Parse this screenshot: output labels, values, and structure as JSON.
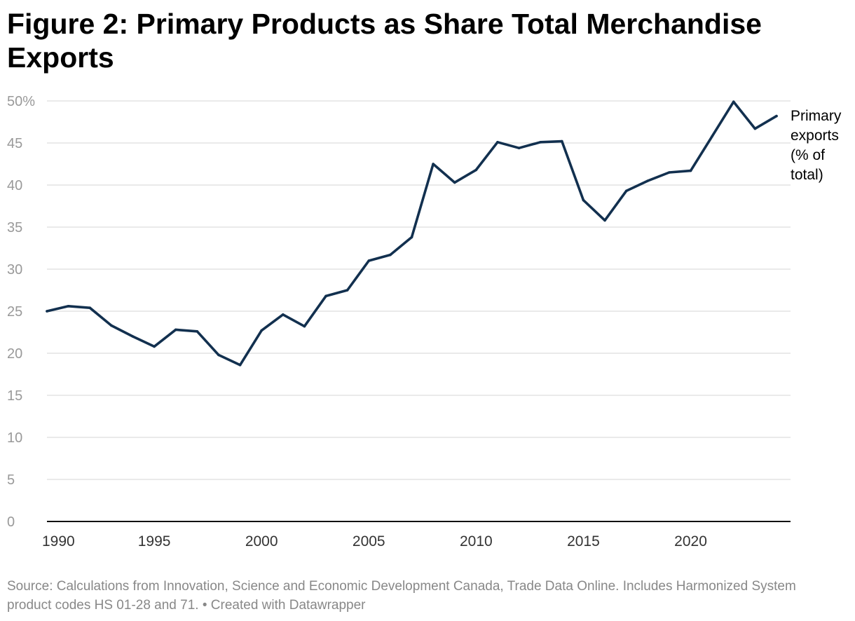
{
  "title": "Figure 2: Primary Products as Share Total Merchandise Exports",
  "footer": {
    "source": "Source: Calculations from Innovation, Science and Economic Development Canada, Trade Data Online. Includes Harmonized System product codes HS 01-28 and 71.",
    "separator": " • ",
    "credit": "Created with Datawrapper"
  },
  "chart_data": {
    "type": "line",
    "title": "Figure 2: Primary Products as Share Total Merchandise Exports",
    "xlabel": "",
    "ylabel": "",
    "xlim": [
      1990,
      2024
    ],
    "ylim": [
      0,
      50
    ],
    "grid": true,
    "x_ticks": [
      1990,
      1995,
      2000,
      2005,
      2010,
      2015,
      2020
    ],
    "y_ticks": [
      0,
      5,
      10,
      15,
      20,
      25,
      30,
      35,
      40,
      45,
      50
    ],
    "y_tick_labels": [
      "0",
      "5",
      "10",
      "15",
      "20",
      "25",
      "30",
      "35",
      "40",
      "45",
      "50%"
    ],
    "x": [
      1990,
      1991,
      1992,
      1993,
      1994,
      1995,
      1996,
      1997,
      1998,
      1999,
      2000,
      2001,
      2002,
      2003,
      2004,
      2005,
      2006,
      2007,
      2008,
      2009,
      2010,
      2011,
      2012,
      2013,
      2014,
      2015,
      2016,
      2017,
      2018,
      2019,
      2020,
      2021,
      2022,
      2023,
      2024
    ],
    "series": [
      {
        "name": "Primary exports (% of total)",
        "color": "#12304f",
        "values": [
          25.0,
          25.6,
          25.4,
          23.3,
          22.0,
          20.8,
          22.8,
          22.6,
          19.8,
          18.6,
          22.7,
          24.6,
          23.2,
          26.8,
          27.5,
          31.0,
          31.7,
          33.8,
          42.5,
          40.3,
          41.8,
          45.1,
          44.4,
          45.1,
          45.2,
          38.2,
          35.8,
          39.3,
          40.5,
          41.5,
          41.7,
          45.8,
          49.9,
          46.7,
          48.2
        ]
      }
    ]
  }
}
